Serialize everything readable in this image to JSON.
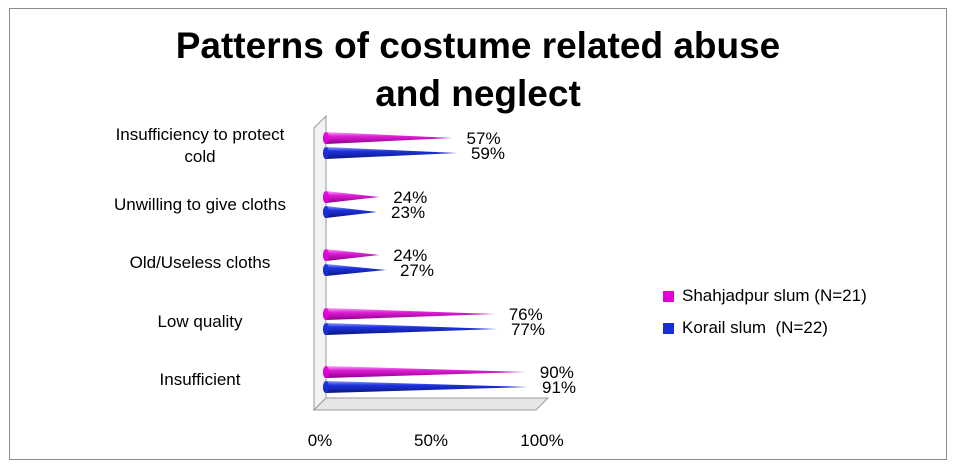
{
  "chart_data": {
    "type": "bar",
    "orientation": "horizontal",
    "style": "3d-cone",
    "title": "Patterns of costume related abuse and neglect",
    "title_lines": [
      "Patterns of costume related abuse",
      "and neglect"
    ],
    "categories": [
      "Insufficiency to protect cold",
      "Unwilling to give cloths",
      "Old/Useless cloths",
      "Low quality",
      "Insufficient"
    ],
    "category_lines": [
      [
        "Insufficiency to protect",
        "cold"
      ],
      [
        "Unwilling to give cloths"
      ],
      [
        "Old/Useless cloths"
      ],
      [
        "Low quality"
      ],
      [
        "Insufficient"
      ]
    ],
    "series": [
      {
        "name": "Shahjadpur slum (N=21)",
        "color": "#e000d8",
        "values": [
          57,
          24,
          24,
          76,
          90
        ],
        "labels": [
          "57%",
          "24%",
          "24%",
          "76%",
          "90%"
        ]
      },
      {
        "name": "Korail slum  (N=22)",
        "color": "#1a2ed6",
        "values": [
          59,
          23,
          27,
          77,
          91
        ],
        "labels": [
          "59%",
          "23%",
          "27%",
          "77%",
          "91%"
        ]
      }
    ],
    "xlim": [
      0,
      100
    ],
    "x_ticks": [
      0,
      50,
      100
    ],
    "x_tick_labels": [
      "0%",
      "50%",
      "100%"
    ],
    "legend_position": "right",
    "grid": false
  }
}
